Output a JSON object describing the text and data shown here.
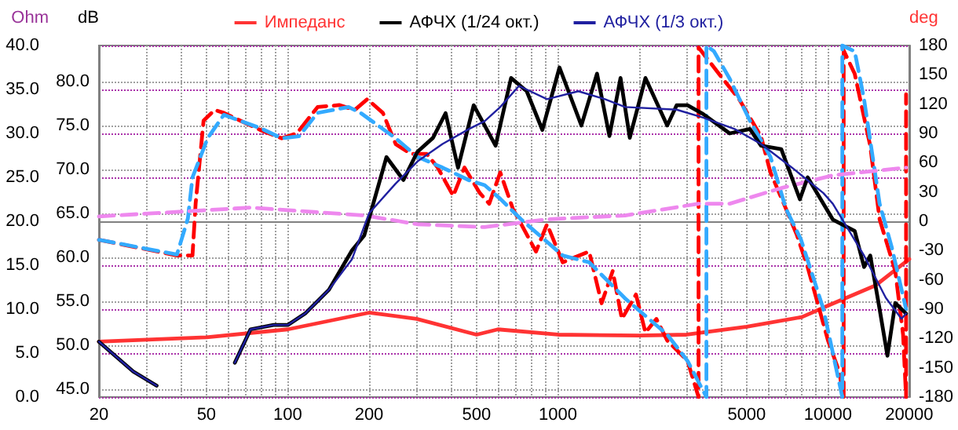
{
  "chart_data": {
    "type": "line",
    "ylabel": "dB",
    "y2label": "deg",
    "y3label": "Ohm",
    "legend": "top",
    "grid": true,
    "log": "x",
    "marker": "none",
    "xlim": [
      20,
      20000
    ],
    "xticks": [
      20,
      {
        "value": 30,
        "label": null
      },
      {
        "value": 40,
        "label": null
      },
      50,
      {
        "value": 60,
        "label": null
      },
      {
        "value": 70,
        "label": null
      },
      {
        "value": 80,
        "label": null
      },
      {
        "value": 90,
        "label": null
      },
      100,
      200,
      {
        "value": 300,
        "label": null
      },
      {
        "value": 400,
        "label": null
      },
      500,
      {
        "value": 600,
        "label": null
      },
      {
        "value": 700,
        "label": null
      },
      {
        "value": 800,
        "label": null
      },
      {
        "value": 900,
        "label": null
      },
      1000,
      {
        "value": 2000,
        "label": null
      },
      {
        "value": 3000,
        "label": null
      },
      {
        "value": 4000,
        "label": null
      },
      5000,
      {
        "value": 6000,
        "label": null
      },
      {
        "value": 7000,
        "label": null
      },
      {
        "value": 8000,
        "label": null
      },
      {
        "value": 9000,
        "label": null
      },
      10000,
      20000
    ],
    "ylim": [
      44.1,
      84.1
    ],
    "yticks": [
      {
        "value": 45,
        "label": "45.0"
      },
      {
        "value": 50,
        "label": "50.0"
      },
      {
        "value": 55,
        "label": "55.0"
      },
      {
        "value": 60,
        "label": "60.0"
      },
      {
        "value": 65,
        "label": "65.0"
      },
      {
        "value": 70,
        "label": "70.0"
      },
      {
        "value": 75,
        "label": "75.0"
      },
      {
        "value": 80,
        "label": "80.0"
      }
    ],
    "y2lim": [
      -180,
      180
    ],
    "y2ticks": [
      -180,
      -150,
      -120,
      -90,
      -60,
      -30,
      0,
      30,
      60,
      90,
      120,
      150,
      180
    ],
    "y3lim": [
      0,
      40
    ],
    "y3ticks": [
      {
        "value": 0,
        "label": "0.0"
      },
      {
        "value": 5,
        "label": "5.0"
      },
      {
        "value": 10,
        "label": "10.0"
      },
      {
        "value": 15,
        "label": "15.0"
      },
      {
        "value": 20,
        "label": "20.0"
      },
      {
        "value": 25,
        "label": "25.0"
      },
      {
        "value": 30,
        "label": "30.0"
      },
      {
        "value": 35,
        "label": "35.0"
      },
      {
        "value": 40,
        "label": "40.0"
      }
    ],
    "series": [
      {
        "name": "Импеданс",
        "color": "#ff3333",
        "axis": "y3",
        "line_style": "solid",
        "x": [
          20,
          50,
          100,
          200,
          300,
          500,
          600,
          1000,
          2000,
          3000,
          5000,
          8000,
          10000,
          15000,
          20000
        ],
        "values": [
          6.3,
          6.8,
          7.7,
          9.6,
          8.9,
          7.1,
          7.7,
          7.1,
          7.0,
          7.1,
          8.0,
          9.1,
          10.4,
          12.7,
          15.7
        ]
      },
      {
        "color": "#ff0000",
        "axis": "y2",
        "line_style": "dashed",
        "x": [
          20,
          38.9,
          44.4,
          45.6,
          48.8,
          53.6,
          58,
          79.8,
          95,
          108,
          129,
          155,
          177,
          197,
          225,
          251,
          286,
          327,
          359,
          410,
          451,
          514,
          557,
          612,
          681,
          830,
          912,
          1042,
          1306,
          1452,
          1596,
          1726,
          1946,
          2110,
          2316,
          2540,
          3020,
          3318,
          3318,
          3946,
          4688,
          5650,
          6124,
          6986,
          7670,
          8410,
          10000,
          11000,
          11430,
          11430,
          12560,
          14340,
          15530,
          17750,
          18970,
          19460,
          19460
        ],
        "values": [
          -19,
          -35,
          -35,
          18,
          103,
          114,
          111,
          93,
          85,
          90,
          117,
          119,
          114,
          125,
          111,
          79,
          69,
          69,
          55,
          26,
          55,
          29,
          18,
          50,
          13,
          -31,
          -3,
          -42,
          -31,
          -84,
          -51,
          -100,
          -75,
          -114,
          -100,
          -122,
          -143,
          -180,
          178,
          151,
          125,
          87,
          50,
          13,
          -14,
          -47,
          -122,
          -154,
          -180,
          175,
          151,
          77,
          2,
          -51,
          -116,
          -180,
          130
        ]
      },
      {
        "color": "#33aaff",
        "axis": "y2",
        "line_style": "dashed",
        "x": [
          20,
          38.9,
          42.7,
          44.4,
          50.5,
          58,
          79.8,
          95,
          110,
          129,
          168,
          186,
          251,
          302,
          374,
          469,
          536,
          612,
          731,
          1042,
          1306,
          1774,
          2540,
          3020,
          3548,
          3548,
          3784,
          4326,
          5140,
          6124,
          6986,
          7950,
          9620,
          11300,
          11300,
          12560,
          13600,
          15530,
          17200,
          19460
        ],
        "values": [
          -19,
          -34,
          3,
          45,
          85,
          109,
          95,
          85,
          87,
          111,
          117,
          111,
          85,
          66,
          55,
          42,
          37,
          23,
          2,
          -35,
          -42,
          -79,
          -116,
          -143,
          -180,
          180,
          174,
          146,
          103,
          66,
          13,
          -19,
          -90,
          -180,
          180,
          174,
          125,
          18,
          -26,
          -90
        ]
      },
      {
        "color": "#ee88ee",
        "axis": "y2",
        "line_style": "dashed",
        "x": [
          20,
          72.8,
          192,
          302,
          536,
          912,
          1774,
          3318,
          4326,
          6716,
          10420,
          19460
        ],
        "values": [
          5,
          14,
          6,
          -3,
          -6,
          2,
          6,
          18,
          18,
          34,
          47,
          55
        ]
      },
      {
        "name": "АФЧХ (1/24 окт.)",
        "color": "#000000",
        "line_style": "solid",
        "x": [
          20,
          26.8,
          32.7,
          35.7,
          45,
          58,
          63.7,
          72.8,
          88.6,
          100,
          116,
          142,
          173,
          192,
          232,
          268,
          302,
          345,
          384,
          427,
          488,
          588,
          671,
          767,
          876,
          1014,
          1222,
          1396,
          1552,
          1706,
          1846,
          2110,
          2540,
          2752,
          3020,
          3452,
          4326,
          5140,
          5650,
          6716,
          7870,
          8410,
          10420,
          12560,
          13600,
          14340,
          15530,
          16600,
          17750,
          19460
        ],
        "values": [
          50.4,
          47.0,
          45.4,
          null,
          null,
          null,
          48.0,
          51.8,
          52.3,
          52.3,
          53.6,
          56.3,
          60.8,
          62.5,
          71.4,
          68.8,
          72.0,
          73.6,
          76.4,
          70.2,
          77.3,
          72.7,
          80.4,
          78.9,
          74.5,
          81.6,
          75.0,
          80.9,
          73.8,
          80.4,
          73.6,
          80.4,
          75.0,
          77.3,
          77.3,
          76.3,
          74.1,
          74.6,
          72.7,
          72.3,
          66.6,
          69.1,
          64.3,
          63.0,
          58.9,
          60.2,
          54.1,
          48.8,
          54.8,
          53.6
        ]
      },
      {
        "name": "АФЧХ (1/3 окт.)",
        "color": "#2020a0",
        "line_style": "solid",
        "x": [
          20,
          26.8,
          32.7,
          35.7,
          45,
          58,
          63.7,
          72.8,
          88.6,
          100,
          116,
          142,
          173,
          200,
          251,
          302,
          374,
          469,
          536,
          612,
          718,
          912,
          1191,
          1493,
          1774,
          2752,
          3452,
          4509,
          5650,
          7363,
          9620,
          10420,
          13600,
          16370,
          18710,
          19460
        ],
        "values": [
          50.4,
          47.0,
          45.4,
          null,
          null,
          null,
          48.0,
          51.8,
          52.3,
          52.3,
          53.6,
          56.3,
          59.8,
          65.0,
          68.4,
          70.9,
          72.9,
          74.6,
          75.5,
          77.1,
          79.5,
          78.0,
          78.9,
          78.0,
          77.1,
          76.8,
          75.9,
          74.6,
          72.9,
          70.2,
          67.3,
          66.1,
          60.2,
          55.4,
          53.0,
          53.6
        ]
      }
    ]
  }
}
